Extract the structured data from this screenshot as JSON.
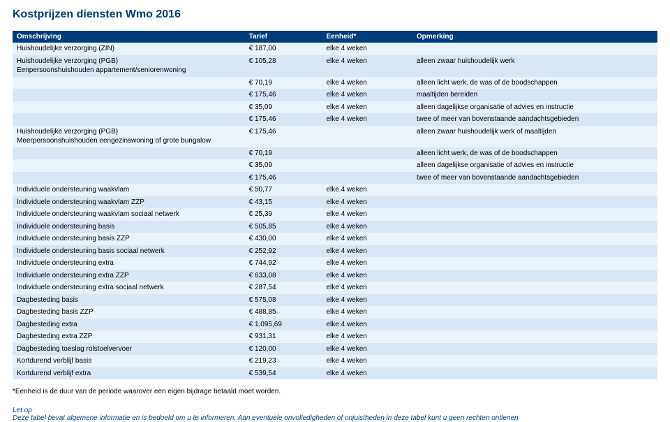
{
  "title": "Kostprijzen diensten Wmo 2016",
  "columns": [
    "Omschrijving",
    "Tarief",
    "Eenheid*",
    "Opmerking"
  ],
  "rows": [
    {
      "desc": "Huishoudelijke verzorging (ZIN)",
      "tarief": "€ 187,00",
      "eenheid": "elke 4 weken",
      "opm": "",
      "stripe": "light"
    },
    {
      "desc": "Huishoudelijke verzorging (PGB)\nEenpersoonshuishouden appartement/seniorenwoning",
      "tarief": "€ 105,28",
      "eenheid": "elke 4 weken",
      "opm": "alleen zwaar huishoudelijk werk",
      "stripe": "dark"
    },
    {
      "desc": "",
      "tarief": "€ 70,19",
      "eenheid": "elke 4 weken",
      "opm": "alleen licht werk, de was of de boodschappen",
      "stripe": "light"
    },
    {
      "desc": "",
      "tarief": "€ 175,46",
      "eenheid": "elke 4 weken",
      "opm": "maaltijden bereiden",
      "stripe": "dark"
    },
    {
      "desc": "",
      "tarief": "€ 35,09",
      "eenheid": "elke 4 weken",
      "opm": "alleen dagelijkse organisatie of advies en instructie",
      "stripe": "light"
    },
    {
      "desc": "",
      "tarief": "€ 175,46",
      "eenheid": "elke 4 weken",
      "opm": "twee of meer van bovenstaande aandachtsgebieden",
      "stripe": "dark"
    },
    {
      "desc": "Huishoudelijke verzorging (PGB)\nMeerpersoonshuishouden eengezinswoning of grote bungalow",
      "tarief": "€ 175,46",
      "eenheid": "",
      "opm": "alleen zwaar huishoudelijk werk of maaltijden",
      "stripe": "light"
    },
    {
      "desc": "",
      "tarief": "€ 70,19",
      "eenheid": "",
      "opm": "alleen licht werk, de was of de boodschappen",
      "stripe": "dark"
    },
    {
      "desc": "",
      "tarief": "€ 35,09",
      "eenheid": "",
      "opm": "alleen dagelijkse organisatie of advies en instructie",
      "stripe": "light"
    },
    {
      "desc": "",
      "tarief": "€ 175,46",
      "eenheid": "",
      "opm": "twee of meer van bovenstaande aandachtsgebieden",
      "stripe": "dark"
    },
    {
      "desc": "Individuele ondersteuning waakvlam",
      "tarief": "€ 50,77",
      "eenheid": "elke 4 weken",
      "opm": "",
      "stripe": "light"
    },
    {
      "desc": "Individuele ondersteuning waakvlam ZZP",
      "tarief": "€ 43,15",
      "eenheid": "elke 4 weken",
      "opm": "",
      "stripe": "dark"
    },
    {
      "desc": "Individuele ondersteuning waakvlam sociaal netwerk",
      "tarief": "€ 25,39",
      "eenheid": "elke 4 weken",
      "opm": "",
      "stripe": "light"
    },
    {
      "desc": "Individuele ondersteuning basis",
      "tarief": "€ 505,85",
      "eenheid": "elke 4 weken",
      "opm": "",
      "stripe": "dark"
    },
    {
      "desc": "Individuele ondersteuning basis ZZP",
      "tarief": "€ 430,00",
      "eenheid": "elke 4 weken",
      "opm": "",
      "stripe": "light"
    },
    {
      "desc": "Individuele ondersteuning basis sociaal netwerk",
      "tarief": "€ 252,92",
      "eenheid": "elke 4 weken",
      "opm": "",
      "stripe": "dark"
    },
    {
      "desc": "Individuele ondersteuning extra",
      "tarief": "€ 744,92",
      "eenheid": "elke 4 weken",
      "opm": "",
      "stripe": "light"
    },
    {
      "desc": "Individuele ondersteuning extra ZZP",
      "tarief": "€ 633,08",
      "eenheid": "elke 4 weken",
      "opm": "",
      "stripe": "dark"
    },
    {
      "desc": "Individuele ondersteuning extra sociaal netwerk",
      "tarief": "€ 287,54",
      "eenheid": "elke 4 weken",
      "opm": "",
      "stripe": "light"
    },
    {
      "desc": "Dagbesteding basis",
      "tarief": "€ 575,08",
      "eenheid": "elke 4 weken",
      "opm": "",
      "stripe": "dark"
    },
    {
      "desc": "Dagbesteding basis ZZP",
      "tarief": "€ 488,85",
      "eenheid": "elke 4 weken",
      "opm": "",
      "stripe": "light"
    },
    {
      "desc": "Dagbesteding extra",
      "tarief": "€ 1.095,69",
      "eenheid": "elke 4 weken",
      "opm": "",
      "stripe": "dark"
    },
    {
      "desc": "Dagbesteding extra ZZP",
      "tarief": "€ 931,31",
      "eenheid": "elke 4 weken",
      "opm": "",
      "stripe": "light"
    },
    {
      "desc": "Dagbesteding toeslag rolstoelvervoer",
      "tarief": "€ 120,00",
      "eenheid": "elke 4 weken",
      "opm": "",
      "stripe": "dark"
    },
    {
      "desc": "Kortdurend verblijf basis",
      "tarief": "€ 219,23",
      "eenheid": "elke 4 weken",
      "opm": "",
      "stripe": "light"
    },
    {
      "desc": "Kortdurend verblijf extra",
      "tarief": "€ 539,54",
      "eenheid": "elke 4 weken",
      "opm": "",
      "stripe": "dark"
    }
  ],
  "footnote": "*Eenheid is de duur van de periode waarover een eigen bijdrage betaald moet worden.",
  "letop_label": "Let op",
  "letop_text": "Deze tabel bevat algemene informatie en is bedoeld om u te informeren. Aan eventuele onvolledigheden of onjuistheden in deze tabel kunt u geen rechten ontlenen.",
  "colors": {
    "header_bg": "#003d7a",
    "header_fg": "#ffffff",
    "row_light": "#eaf2fa",
    "row_dark": "#d9e6f3",
    "title": "#003d7a"
  }
}
